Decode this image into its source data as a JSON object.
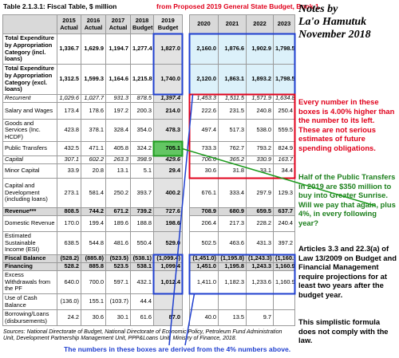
{
  "title": {
    "main": "Table 2.1.3.1: Fiscal Table, $ million",
    "source": "from Proposed 2019 General State Budget, Book 1."
  },
  "table": {
    "columns": [
      {
        "year": "2015",
        "basis": "Actual"
      },
      {
        "year": "2016",
        "basis": "Actual"
      },
      {
        "year": "2017",
        "basis": "Actual"
      },
      {
        "year": "2018",
        "basis": "Budget"
      },
      {
        "year": "2019",
        "basis": "Budget"
      },
      {
        "year": "2020"
      },
      {
        "year": "2021"
      },
      {
        "year": "2022"
      },
      {
        "year": "2023"
      }
    ],
    "rows": [
      {
        "label": "Total Expenditure by Appropriation Category (incl. loans)",
        "values": [
          "1,336.7",
          "1,629.9",
          "1,194.7",
          "1,277.4",
          "1,827.0",
          "2,160.0",
          "1,876.6",
          "1,902.9",
          "1,798.5"
        ]
      },
      {
        "label": "Total Expenditure by Appropriation Category (excl. loans)",
        "values": [
          "1,312.5",
          "1,599.3",
          "1,164.6",
          "1,215.8",
          "1,740.0",
          "2,120.0",
          "1,863.1",
          "1,893.2",
          "1,798.5"
        ]
      },
      {
        "label": "Recurrent",
        "values": [
          "1,029.6",
          "1,027.7",
          "931.3",
          "878.5",
          "1,397.4",
          "1,453.3",
          "1,511.5",
          "1,571.9",
          "1,634.8"
        ]
      },
      {
        "label": "Salary and Wages",
        "values": [
          "173.4",
          "178.6",
          "197.2",
          "200.3",
          "214.0",
          "222.6",
          "231.5",
          "240.8",
          "250.4"
        ]
      },
      {
        "label": "Goods and Services (Inc. HCDF)",
        "values": [
          "423.8",
          "378.1",
          "328.4",
          "354.0",
          "478.3",
          "497.4",
          "517.3",
          "538.0",
          "559.5"
        ]
      },
      {
        "label": "Public Transfers",
        "values": [
          "432.5",
          "471.1",
          "405.8",
          "324.2",
          "705.1",
          "733.3",
          "762.7",
          "793.2",
          "824.9"
        ]
      },
      {
        "label": "Capital",
        "values": [
          "307.1",
          "602.2",
          "263.3",
          "398.9",
          "429.6",
          "706.6",
          "365.2",
          "330.9",
          "163.7"
        ]
      },
      {
        "label": "Minor Capital",
        "values": [
          "33.9",
          "20.8",
          "13.1",
          "5.1",
          "29.4",
          "30.6",
          "31.8",
          "33.1",
          "34.4"
        ]
      },
      {
        "label": "Capital and Development (including loans)",
        "values": [
          "273.1",
          "581.4",
          "250.2",
          "393.7",
          "400.2",
          "676.1",
          "333.4",
          "297.9",
          "129.3"
        ]
      },
      {
        "label": "Revenue***",
        "values": [
          "808.5",
          "744.2",
          "671.2",
          "739.2",
          "727.6",
          "708.9",
          "680.9",
          "659.5",
          "637.7"
        ]
      },
      {
        "label": "Domestic Revenue",
        "values": [
          "170.0",
          "199.4",
          "189.6",
          "188.8",
          "198.6",
          "206.4",
          "217.3",
          "228.2",
          "240.4"
        ]
      },
      {
        "label": "Estimated Sustainable Income (ESI)",
        "values": [
          "638.5",
          "544.8",
          "481.6",
          "550.4",
          "529.0",
          "502.5",
          "463.6",
          "431.3",
          "397.2"
        ]
      },
      {
        "label": "Fiscal Balance",
        "values": [
          "(528.2)",
          "(885.8)",
          "(523.5)",
          "(538.1)",
          "(1,099.4)",
          "(1,451.0)",
          "(1,195.8)",
          "(1,243.3)",
          "(1,160.9)"
        ]
      },
      {
        "label": "Financing",
        "values": [
          "528.2",
          "885.8",
          "523.5",
          "538.1",
          "1,099.4",
          "1,451.0",
          "1,195.8",
          "1,243.3",
          "1,160.9"
        ]
      },
      {
        "label": "Excess Withdrawals from the PF",
        "values": [
          "640.0",
          "700.0",
          "597.1",
          "432.1",
          "1,012.4",
          "1,411.0",
          "1,182.3",
          "1,233.6",
          "1,160.9"
        ]
      },
      {
        "label": "Use of Cash Balance",
        "values": [
          "(136.0)",
          "155.1",
          "(103.7)",
          "44.4",
          null,
          null,
          null,
          null,
          null
        ]
      },
      {
        "label": "Borrowing/Loans (disbursements)",
        "values": [
          "24.2",
          "30.6",
          "30.1",
          "61.6",
          "87.0",
          "40.0",
          "13.5",
          "9.7",
          null
        ]
      }
    ]
  },
  "sources": "Sources: National Directorate of Budget, National Directorate of Economic Policy, Petroleum Fund Administration Unit, Development Partnership Management Unit, PPP&Loans Unit, Ministry of Finance, 2018.",
  "boxes_note": "The numbers in these boxes are derived from the 4% numbers above.",
  "notes": {
    "heading": [
      "Notes by",
      "La'o Hamutuk",
      "November 2018"
    ],
    "four_percent": "Every number in these boxes is 4.00% higher than the number to its left. These are not serious estimates of future spending obligations.",
    "sunrise": "Half of the Public Transfers in 2019 are $350 million to buy into Greater Sunrise. Will we pay that again, plus 4%, in every following year?",
    "law": "Articles 3.3 and 22.3(a) of Law 13/2009 on Budget and Financial Management require projections for at least two years after the budget year.",
    "compliance": "This simplistic formula does not comply with the law."
  }
}
